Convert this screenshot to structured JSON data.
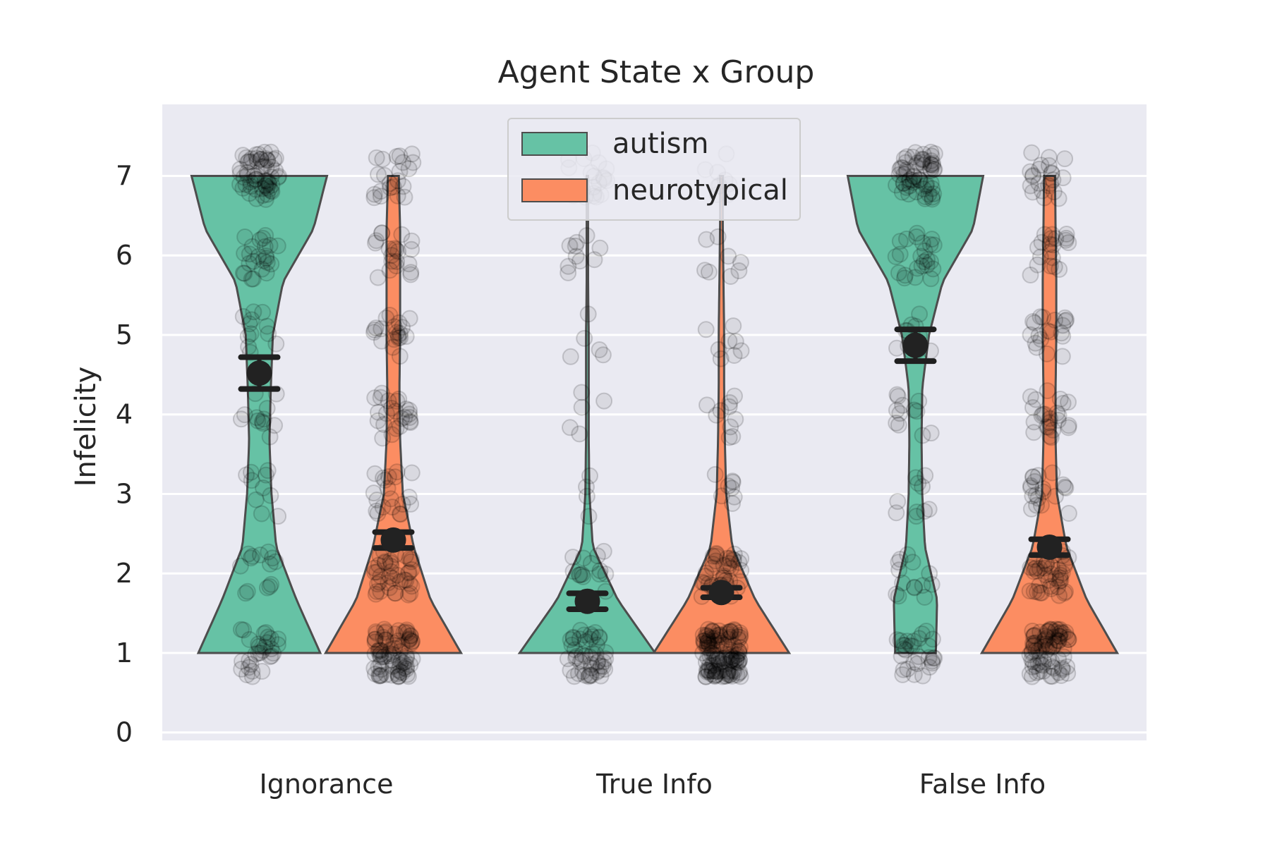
{
  "chart_data": {
    "type": "violin",
    "title": "Agent State x Group",
    "xlabel": "",
    "ylabel": "Infelicity",
    "categories": [
      "Ignorance",
      "True Info",
      "False Info"
    ],
    "y_ticks": [
      "0",
      "1",
      "2",
      "3",
      "4",
      "5",
      "6",
      "7"
    ],
    "ylim": [
      -0.1,
      7.9
    ],
    "y_values": [
      0,
      1,
      2,
      3,
      4,
      5,
      6,
      7
    ],
    "grid": "horizontal",
    "legend": {
      "position": "top-center"
    },
    "series": [
      {
        "name": "autism",
        "color": "#66c2a5",
        "means": [
          4.52,
          1.65,
          4.87
        ],
        "ci_low": [
          4.32,
          1.55,
          4.67
        ],
        "ci_high": [
          4.72,
          1.75,
          5.07
        ],
        "density": [
          [
            0.9,
            0.55,
            0.25,
            0.18,
            0.15,
            0.17,
            0.2,
            0.35,
            0.8,
            1.0
          ],
          [
            1.0,
            0.45,
            0.08,
            0.03,
            0.02,
            0.02,
            0.02,
            0.01,
            0.01,
            0.01
          ],
          [
            0.3,
            0.32,
            0.14,
            0.1,
            0.09,
            0.1,
            0.2,
            0.4,
            0.85,
            1.0
          ]
        ],
        "points": [
          {
            "level": 7,
            "count": 60
          },
          {
            "level": 6,
            "count": 24
          },
          {
            "level": 5,
            "count": 12
          },
          {
            "level": 4,
            "count": 12
          },
          {
            "level": 3,
            "count": 10
          },
          {
            "level": 2,
            "count": 14
          },
          {
            "level": 1,
            "count": 30
          }
        ]
      },
      {
        "name": "neurotypical",
        "color": "#fc8d62",
        "means": [
          2.42,
          1.76,
          2.33
        ],
        "ci_low": [
          2.32,
          1.7,
          2.23
        ],
        "ci_high": [
          2.52,
          1.82,
          2.43
        ],
        "density": [
          [
            1.0,
            0.55,
            0.3,
            0.14,
            0.1,
            0.09,
            0.1,
            0.1,
            0.1,
            0.08
          ],
          [
            1.0,
            0.5,
            0.16,
            0.07,
            0.05,
            0.04,
            0.04,
            0.03,
            0.02,
            0.02
          ],
          [
            1.0,
            0.55,
            0.25,
            0.11,
            0.09,
            0.09,
            0.1,
            0.1,
            0.09,
            0.08
          ]
        ],
        "points": [
          {
            "level": 7,
            "count": 22
          },
          {
            "level": 6,
            "count": 20
          },
          {
            "level": 5,
            "count": 20
          },
          {
            "level": 4,
            "count": 24
          },
          {
            "level": 3,
            "count": 20
          },
          {
            "level": 2,
            "count": 40
          },
          {
            "level": 1,
            "count": 80
          }
        ]
      }
    ]
  }
}
